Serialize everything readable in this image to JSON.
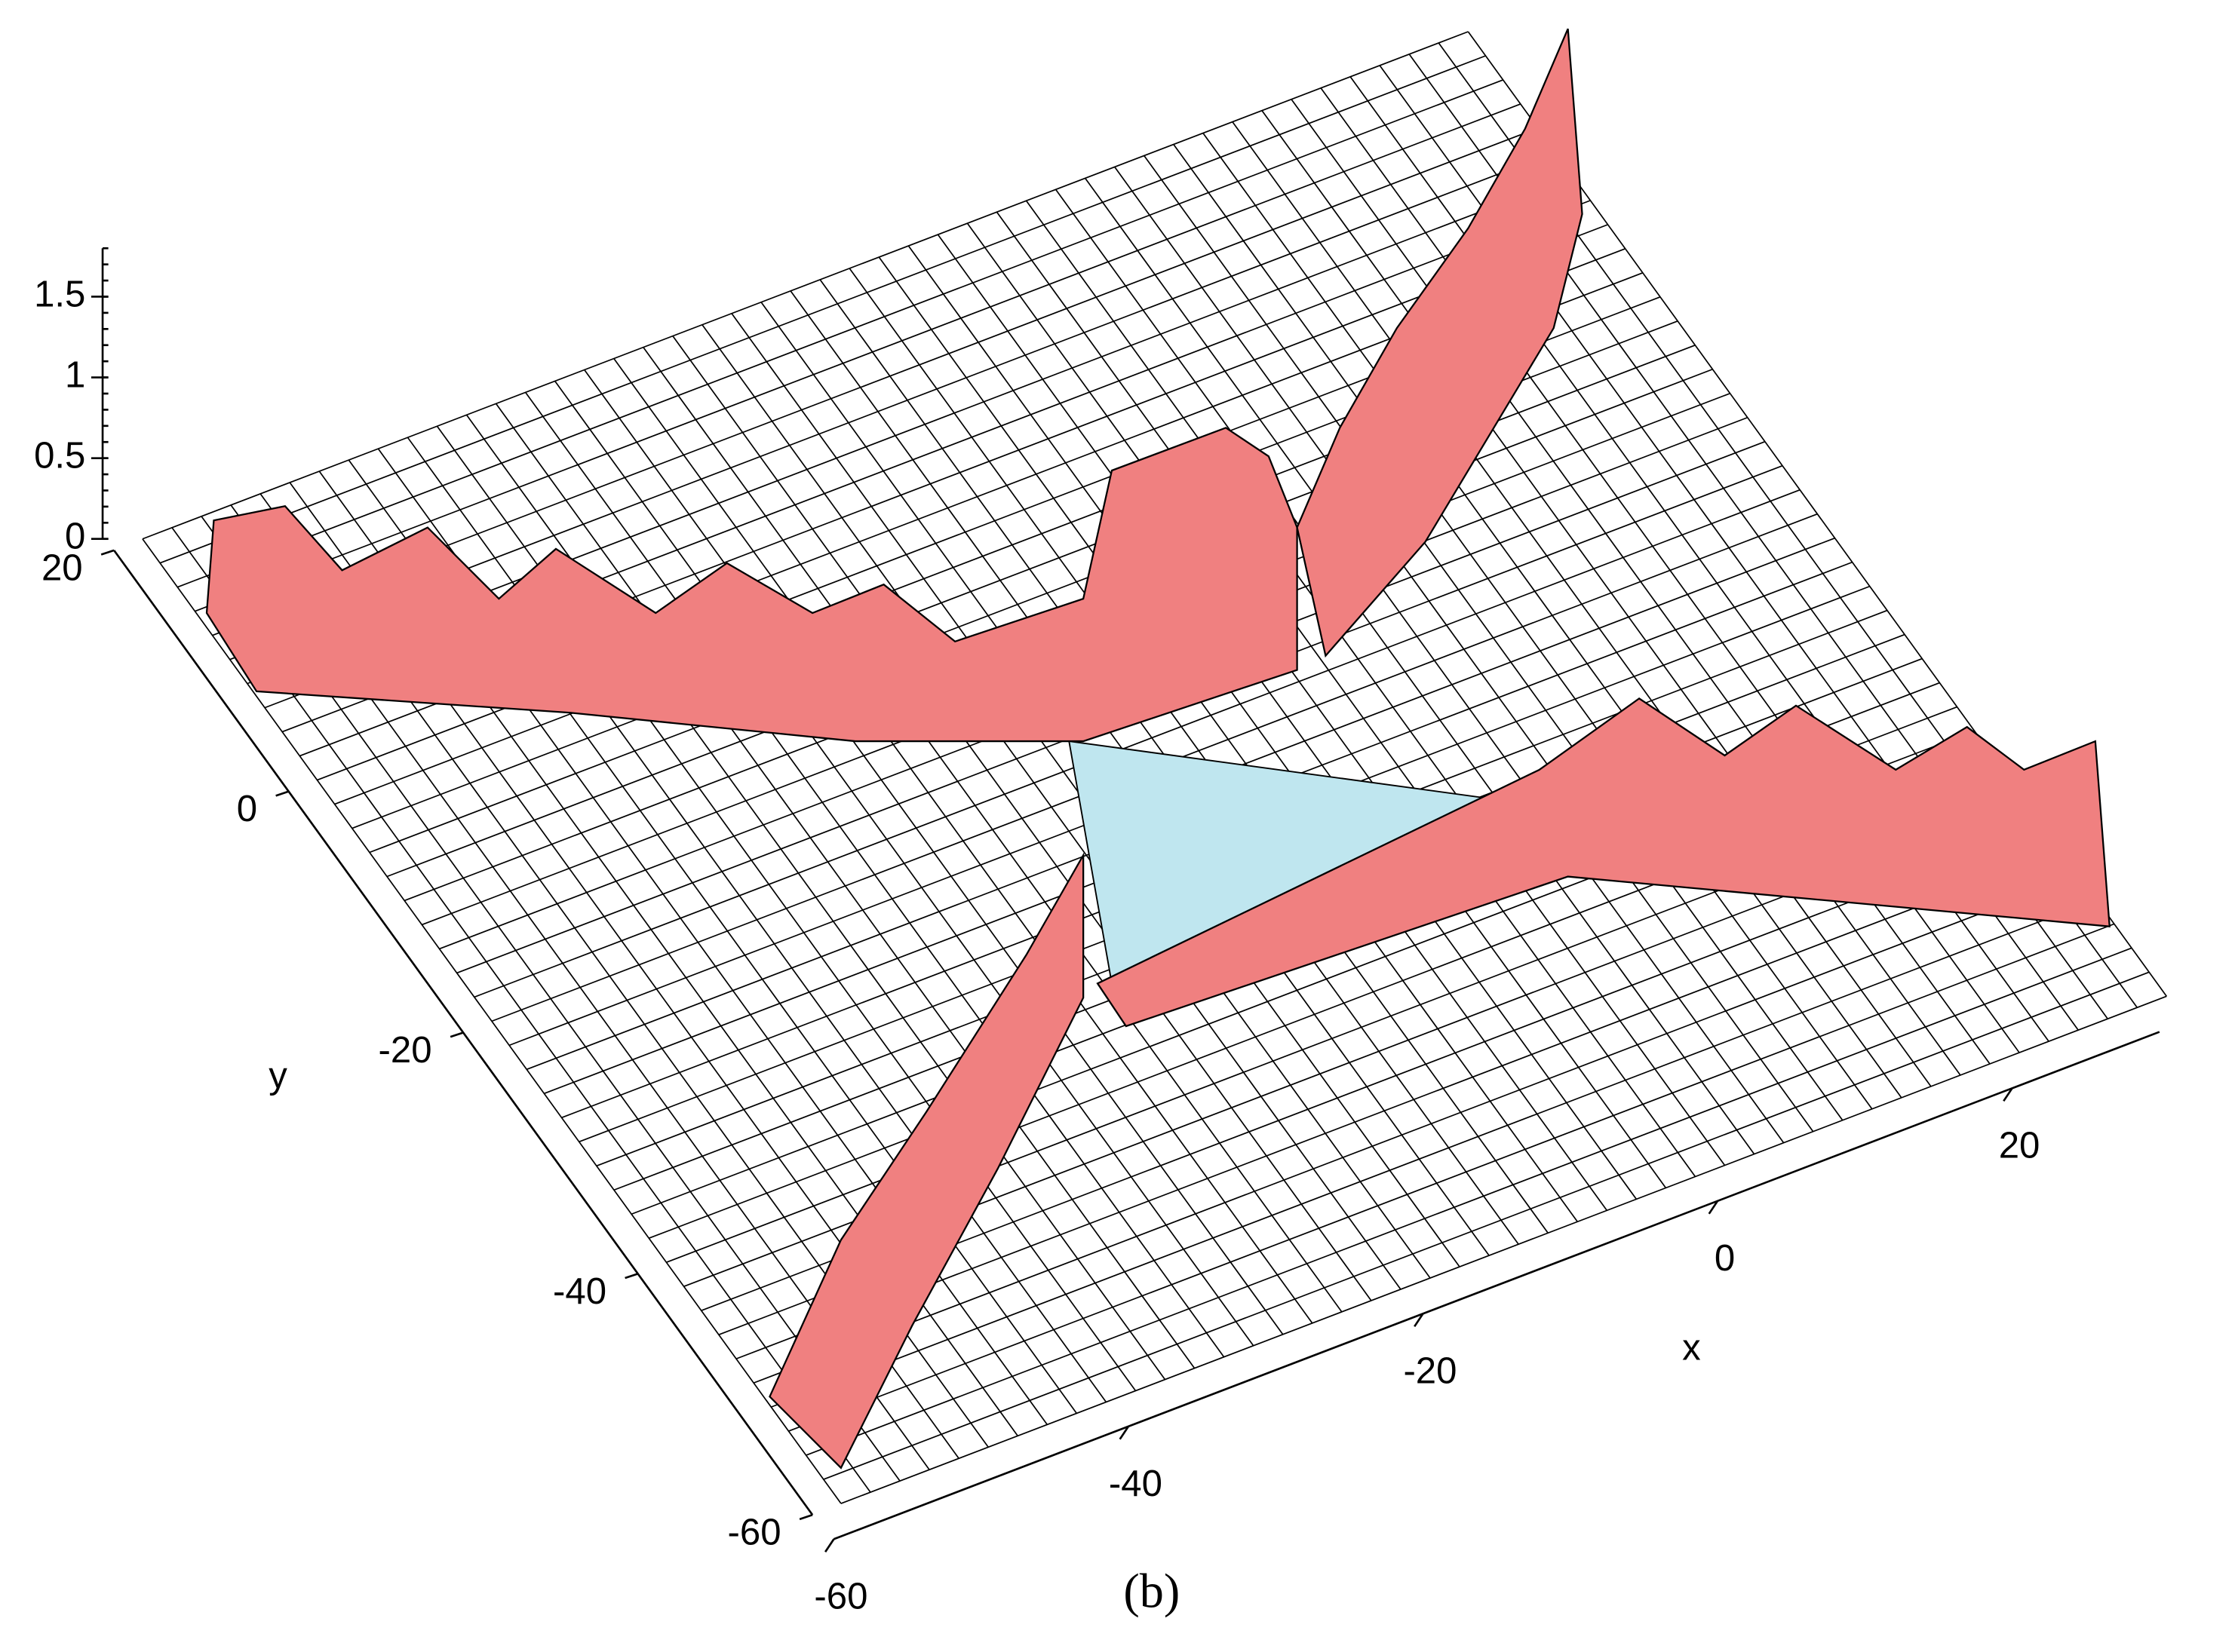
{
  "chart_data": {
    "type": "surface",
    "xlabel": "x",
    "ylabel": "y",
    "caption": "(b)",
    "xlim": [
      -60,
      30
    ],
    "ylim": [
      -60,
      20
    ],
    "zlim": [
      0,
      1.8
    ],
    "xticks": [
      -60,
      -40,
      -20,
      0,
      20
    ],
    "yticks": [
      -60,
      -40,
      -20,
      0,
      20
    ],
    "zticks": [
      0,
      0.5,
      1,
      1.5
    ],
    "grid": true
  }
}
